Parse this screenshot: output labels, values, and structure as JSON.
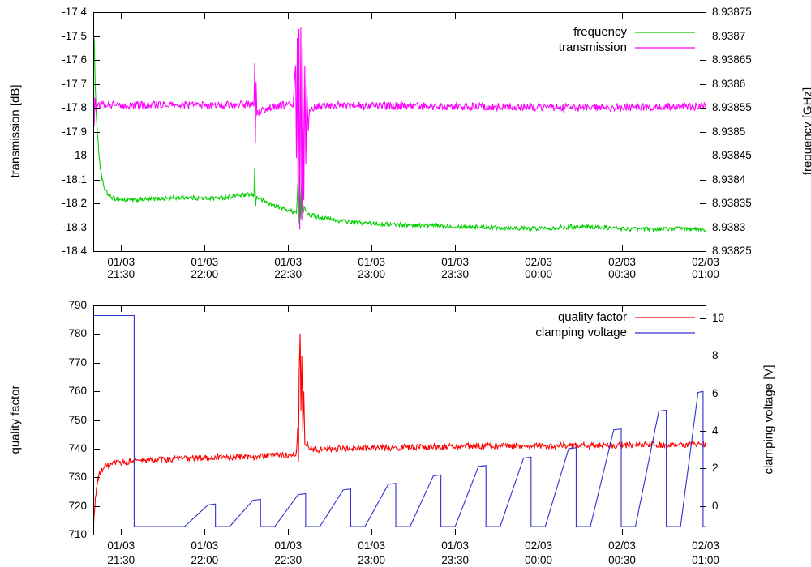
{
  "figure": {
    "background": "#ffffff",
    "axis_color": "#000000",
    "text_color": "#000000"
  },
  "chart_data": [
    {
      "type": "line",
      "title": "",
      "legend_position": "top-right",
      "x_axis": {
        "range": [
          21.3333,
          25.0
        ],
        "unit": "time (DD/MM HH:MM)",
        "ticks": [
          {
            "pos": 21.5,
            "line1": "01/03",
            "line2": "21:30"
          },
          {
            "pos": 22.0,
            "line1": "01/03",
            "line2": "22:00"
          },
          {
            "pos": 22.5,
            "line1": "01/03",
            "line2": "22:30"
          },
          {
            "pos": 23.0,
            "line1": "01/03",
            "line2": "23:00"
          },
          {
            "pos": 23.5,
            "line1": "01/03",
            "line2": "23:30"
          },
          {
            "pos": 24.0,
            "line1": "02/03",
            "line2": "00:00"
          },
          {
            "pos": 24.5,
            "line1": "02/03",
            "line2": "00:30"
          },
          {
            "pos": 25.0,
            "line1": "02/03",
            "line2": "01:00"
          }
        ]
      },
      "left_axis": {
        "label": "transmission [dB]",
        "range": [
          -18.4,
          -17.4
        ],
        "ticks": [
          {
            "v": -17.4,
            "label": "-17.4"
          },
          {
            "v": -17.5,
            "label": "-17.5"
          },
          {
            "v": -17.6,
            "label": "-17.6"
          },
          {
            "v": -17.7,
            "label": "-17.7"
          },
          {
            "v": -17.8,
            "label": "-17.8"
          },
          {
            "v": -17.9,
            "label": "-17.9"
          },
          {
            "v": -18.0,
            "label": "-18"
          },
          {
            "v": -18.1,
            "label": "-18.1"
          },
          {
            "v": -18.2,
            "label": "-18.2"
          },
          {
            "v": -18.3,
            "label": "-18.3"
          },
          {
            "v": -18.4,
            "label": "-18.4"
          }
        ]
      },
      "right_axis": {
        "label": "frequency [GHz]",
        "range": [
          8.93825,
          8.93875
        ],
        "ticks": [
          {
            "v": 8.93875,
            "label": "8.93875"
          },
          {
            "v": 8.9387,
            "label": "8.9387"
          },
          {
            "v": 8.93865,
            "label": "8.93865"
          },
          {
            "v": 8.9386,
            "label": "8.9386"
          },
          {
            "v": 8.93855,
            "label": "8.93855"
          },
          {
            "v": 8.9385,
            "label": "8.9385"
          },
          {
            "v": 8.93845,
            "label": "8.93845"
          },
          {
            "v": 8.9384,
            "label": "8.9384"
          },
          {
            "v": 8.93835,
            "label": "8.93835"
          },
          {
            "v": 8.9383,
            "label": "8.9383"
          },
          {
            "v": 8.93825,
            "label": "8.93825"
          }
        ]
      },
      "series": [
        {
          "name": "frequency",
          "color": "#00d000",
          "axis": "right",
          "noise": 4.5e-06,
          "sampled": true,
          "points": [
            [
              21.3333,
              8.938712
            ],
            [
              21.34,
              8.93868
            ],
            [
              21.345,
              8.9386
            ],
            [
              21.35,
              8.938545
            ],
            [
              21.357,
              8.938505
            ],
            [
              21.365,
              8.938462
            ],
            [
              21.375,
              8.938425
            ],
            [
              21.385,
              8.9384
            ],
            [
              21.4,
              8.938382
            ],
            [
              21.415,
              8.938372
            ],
            [
              21.43,
              8.938365
            ],
            [
              21.46,
              8.93836
            ],
            [
              21.52,
              8.938357
            ],
            [
              21.6,
              8.938357
            ],
            [
              21.75,
              8.93836
            ],
            [
              21.9,
              8.938362
            ],
            [
              22.0,
              8.93836
            ],
            [
              22.1,
              8.938362
            ],
            [
              22.2,
              8.938366
            ],
            [
              22.27,
              8.938368
            ],
            [
              22.295,
              8.938366
            ],
            [
              22.3,
              8.93842
            ],
            [
              22.306,
              8.938348
            ],
            [
              22.312,
              8.938363
            ],
            [
              22.36,
              8.938354
            ],
            [
              22.42,
              8.938345
            ],
            [
              22.48,
              8.938338
            ],
            [
              22.53,
              8.938333
            ],
            [
              22.55,
              8.93833
            ],
            [
              22.558,
              8.938388
            ],
            [
              22.563,
              8.938312
            ],
            [
              22.569,
              8.938418
            ],
            [
              22.575,
              8.938318
            ],
            [
              22.581,
              8.938398
            ],
            [
              22.588,
              8.938328
            ],
            [
              22.595,
              8.93834
            ],
            [
              22.63,
              8.938326
            ],
            [
              22.7,
              8.93832
            ],
            [
              22.8,
              8.938314
            ],
            [
              22.9,
              8.93831
            ],
            [
              23.05,
              8.938307
            ],
            [
              23.2,
              8.938305
            ],
            [
              23.4,
              8.938303
            ],
            [
              23.6,
              8.938301
            ],
            [
              23.8,
              8.938299
            ],
            [
              23.95,
              8.938297
            ],
            [
              24.1,
              8.938299
            ],
            [
              24.25,
              8.938302
            ],
            [
              24.4,
              8.938299
            ],
            [
              24.55,
              8.938296
            ],
            [
              24.7,
              8.938296
            ],
            [
              24.85,
              8.938297
            ],
            [
              25.0,
              8.938295
            ]
          ]
        },
        {
          "name": "transmission",
          "color": "#ff00ff",
          "axis": "left",
          "noise": 0.016,
          "sampled": true,
          "points": [
            [
              21.3333,
              -17.6
            ],
            [
              21.338,
              -17.88
            ],
            [
              21.343,
              -17.75
            ],
            [
              21.35,
              -17.8
            ],
            [
              21.36,
              -17.785
            ],
            [
              21.5,
              -17.79
            ],
            [
              21.8,
              -17.788
            ],
            [
              22.1,
              -17.79
            ],
            [
              22.25,
              -17.786
            ],
            [
              22.295,
              -17.786
            ],
            [
              22.3,
              -17.62
            ],
            [
              22.304,
              -17.95
            ],
            [
              22.308,
              -17.7
            ],
            [
              22.313,
              -17.82
            ],
            [
              22.45,
              -17.79
            ],
            [
              22.53,
              -17.788
            ],
            [
              22.545,
              -17.62
            ],
            [
              22.55,
              -18.02
            ],
            [
              22.555,
              -17.52
            ],
            [
              22.56,
              -18.22
            ],
            [
              22.565,
              -17.47
            ],
            [
              22.57,
              -18.32
            ],
            [
              22.576,
              -17.46
            ],
            [
              22.582,
              -18.28
            ],
            [
              22.588,
              -17.55
            ],
            [
              22.594,
              -18.2
            ],
            [
              22.6,
              -17.62
            ],
            [
              22.606,
              -18.05
            ],
            [
              22.612,
              -17.72
            ],
            [
              22.62,
              -17.9
            ],
            [
              22.63,
              -17.8
            ],
            [
              22.75,
              -17.79
            ],
            [
              23.0,
              -17.792
            ],
            [
              23.4,
              -17.795
            ],
            [
              23.8,
              -17.797
            ],
            [
              24.2,
              -17.8
            ],
            [
              24.6,
              -17.797
            ],
            [
              25.0,
              -17.795
            ]
          ]
        }
      ]
    },
    {
      "type": "line",
      "title": "",
      "legend_position": "top-right",
      "x_axis": {
        "range": [
          21.3333,
          25.0
        ],
        "unit": "time (DD/MM HH:MM)",
        "ticks": [
          {
            "pos": 21.5,
            "line1": "01/03",
            "line2": "21:30"
          },
          {
            "pos": 22.0,
            "line1": "01/03",
            "line2": "22:00"
          },
          {
            "pos": 22.5,
            "line1": "01/03",
            "line2": "22:30"
          },
          {
            "pos": 23.0,
            "line1": "01/03",
            "line2": "23:00"
          },
          {
            "pos": 23.5,
            "line1": "01/03",
            "line2": "23:30"
          },
          {
            "pos": 24.0,
            "line1": "02/03",
            "line2": "00:00"
          },
          {
            "pos": 24.5,
            "line1": "02/03",
            "line2": "00:30"
          },
          {
            "pos": 25.0,
            "line1": "02/03",
            "line2": "01:00"
          }
        ]
      },
      "left_axis": {
        "label": "quality factor",
        "range": [
          710,
          790
        ],
        "ticks": [
          {
            "v": 790,
            "label": "790"
          },
          {
            "v": 780,
            "label": "780"
          },
          {
            "v": 770,
            "label": "770"
          },
          {
            "v": 760,
            "label": "760"
          },
          {
            "v": 750,
            "label": "750"
          },
          {
            "v": 740,
            "label": "740"
          },
          {
            "v": 730,
            "label": "730"
          },
          {
            "v": 720,
            "label": "720"
          },
          {
            "v": 710,
            "label": "710"
          }
        ]
      },
      "right_axis": {
        "label": "clamping voltage [V]",
        "range": [
          -1.53,
          10.69
        ],
        "ticks": [
          {
            "v": 10,
            "label": "10"
          },
          {
            "v": 8,
            "label": "8"
          },
          {
            "v": 6,
            "label": "6"
          },
          {
            "v": 4,
            "label": "4"
          },
          {
            "v": 2,
            "label": "2"
          },
          {
            "v": 0,
            "label": "0"
          }
        ]
      },
      "series": [
        {
          "name": "quality factor",
          "color": "#ff0000",
          "axis": "left",
          "noise": 1.1,
          "sampled": true,
          "points": [
            [
              21.3333,
              711.5
            ],
            [
              21.338,
              716
            ],
            [
              21.344,
              721
            ],
            [
              21.352,
              726
            ],
            [
              21.362,
              729.5
            ],
            [
              21.375,
              731.5
            ],
            [
              21.39,
              733
            ],
            [
              21.42,
              734
            ],
            [
              21.46,
              734.8
            ],
            [
              21.55,
              735.5
            ],
            [
              21.7,
              736
            ],
            [
              21.9,
              736.6
            ],
            [
              22.1,
              737
            ],
            [
              22.3,
              737.2
            ],
            [
              22.45,
              737.6
            ],
            [
              22.53,
              738
            ],
            [
              22.55,
              738.5
            ],
            [
              22.557,
              747
            ],
            [
              22.562,
              736
            ],
            [
              22.567,
              769
            ],
            [
              22.572,
              781
            ],
            [
              22.577,
              753
            ],
            [
              22.582,
              772
            ],
            [
              22.588,
              746
            ],
            [
              22.594,
              759
            ],
            [
              22.6,
              742
            ],
            [
              22.65,
              739.5
            ],
            [
              22.8,
              740
            ],
            [
              23.0,
              740.2
            ],
            [
              23.3,
              740.5
            ],
            [
              23.6,
              740.8
            ],
            [
              23.9,
              741
            ],
            [
              24.2,
              741
            ],
            [
              24.5,
              741.2
            ],
            [
              24.75,
              741.4
            ],
            [
              25.0,
              741.5
            ]
          ]
        },
        {
          "name": "clamping voltage",
          "color": "#3030d0",
          "axis": "right",
          "noise": 0,
          "sampled": false,
          "points": [
            [
              21.3333,
              10.15
            ],
            [
              21.578,
              10.15
            ],
            [
              21.578,
              -1.1
            ],
            [
              21.88,
              -1.1
            ],
            [
              22.02,
              0.05
            ],
            [
              22.065,
              0.1
            ],
            [
              22.065,
              -1.1
            ],
            [
              22.15,
              -1.1
            ],
            [
              22.29,
              0.3
            ],
            [
              22.335,
              0.35
            ],
            [
              22.335,
              -1.1
            ],
            [
              22.42,
              -1.1
            ],
            [
              22.56,
              0.6
            ],
            [
              22.605,
              0.65
            ],
            [
              22.605,
              -1.1
            ],
            [
              22.69,
              -1.1
            ],
            [
              22.83,
              0.85
            ],
            [
              22.875,
              0.9
            ],
            [
              22.875,
              -1.1
            ],
            [
              22.96,
              -1.1
            ],
            [
              23.1,
              1.15
            ],
            [
              23.145,
              1.2
            ],
            [
              23.145,
              -1.1
            ],
            [
              23.23,
              -1.1
            ],
            [
              23.37,
              1.6
            ],
            [
              23.415,
              1.65
            ],
            [
              23.415,
              -1.1
            ],
            [
              23.5,
              -1.1
            ],
            [
              23.64,
              2.1
            ],
            [
              23.685,
              2.15
            ],
            [
              23.685,
              -1.1
            ],
            [
              23.77,
              -1.1
            ],
            [
              23.91,
              2.55
            ],
            [
              23.955,
              2.6
            ],
            [
              23.955,
              -1.1
            ],
            [
              24.04,
              -1.1
            ],
            [
              24.18,
              3.05
            ],
            [
              24.225,
              3.1
            ],
            [
              24.225,
              -1.1
            ],
            [
              24.31,
              -1.1
            ],
            [
              24.45,
              4.05
            ],
            [
              24.495,
              4.1
            ],
            [
              24.495,
              -1.1
            ],
            [
              24.58,
              -1.1
            ],
            [
              24.72,
              5.05
            ],
            [
              24.765,
              5.1
            ],
            [
              24.765,
              -1.1
            ],
            [
              24.85,
              -1.1
            ],
            [
              24.955,
              6.05
            ],
            [
              24.985,
              6.1
            ],
            [
              24.985,
              -1.1
            ],
            [
              25.0,
              -1.1
            ]
          ]
        }
      ]
    }
  ]
}
